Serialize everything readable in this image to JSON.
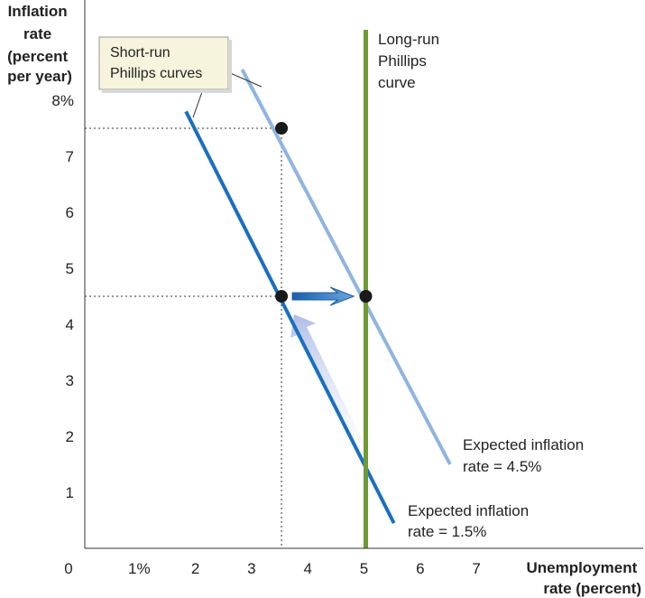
{
  "chart_data": {
    "type": "line",
    "ylabel_lines": [
      "Inflation",
      "rate",
      "(percent",
      "per year)"
    ],
    "xlabel_lines": [
      "Unemployment",
      "rate (percent)"
    ],
    "xlim": [
      0,
      7.3
    ],
    "ylim": [
      0,
      8.7
    ],
    "x_ticks": [
      {
        "value": 0,
        "label": "0"
      },
      {
        "value": 1,
        "label": "1%"
      },
      {
        "value": 2,
        "label": "2"
      },
      {
        "value": 3,
        "label": "3"
      },
      {
        "value": 4,
        "label": "4"
      },
      {
        "value": 5,
        "label": "5"
      },
      {
        "value": 6,
        "label": "6"
      },
      {
        "value": 7,
        "label": "7"
      }
    ],
    "y_ticks": [
      {
        "value": 1,
        "label": "1"
      },
      {
        "value": 2,
        "label": "2"
      },
      {
        "value": 3,
        "label": "3"
      },
      {
        "value": 4,
        "label": "4"
      },
      {
        "value": 5,
        "label": "5"
      },
      {
        "value": 6,
        "label": "6"
      },
      {
        "value": 7,
        "label": "7"
      },
      {
        "value": 8,
        "label": "8%"
      }
    ],
    "series": [
      {
        "name": "Expected inflation rate = 1.5%",
        "label_lines": [
          "Expected inflation",
          "rate = 1.5%"
        ],
        "color": "#1a6fbf",
        "x": [
          1.8,
          5.5
        ],
        "y": [
          7.8,
          0.45
        ]
      },
      {
        "name": "Expected inflation rate = 4.5%",
        "label_lines": [
          "Expected inflation",
          "rate = 4.5%"
        ],
        "color": "#8fb4df",
        "x": [
          2.8,
          6.5
        ],
        "y": [
          8.55,
          1.5
        ]
      },
      {
        "name": "Long-run Phillips curve",
        "label_lines": [
          "Long-run",
          "Phillips",
          "curve"
        ],
        "color": "#6f9a35",
        "x": [
          5,
          5
        ],
        "y": [
          0,
          9.25
        ]
      }
    ],
    "points": [
      {
        "x": 3.5,
        "y": 7.5
      },
      {
        "x": 3.5,
        "y": 4.5
      },
      {
        "x": 5,
        "y": 4.5
      }
    ],
    "callout_lines": [
      "Short-run",
      "Phillips curves"
    ],
    "grid": false
  }
}
